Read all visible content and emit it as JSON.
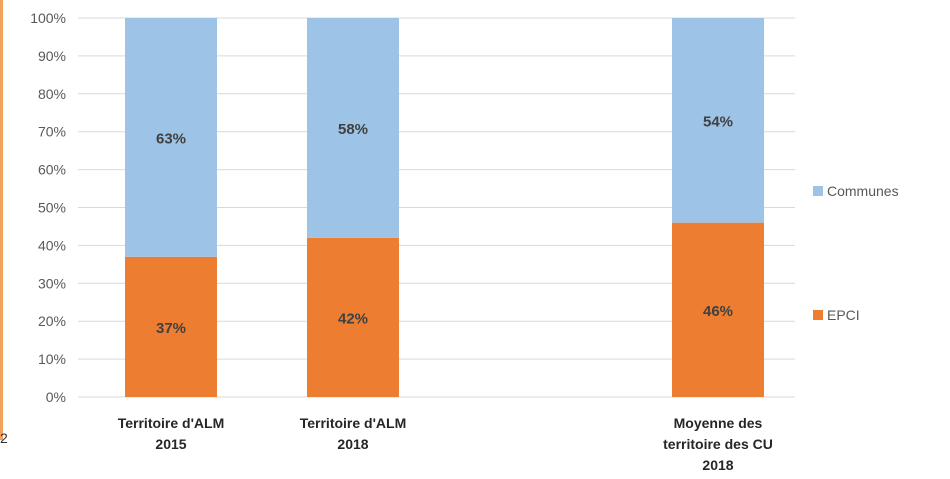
{
  "chart_data": {
    "type": "bar",
    "stacked": true,
    "percent": true,
    "categories": [
      [
        "Territoire d'ALM",
        "2015"
      ],
      [
        "Territoire d'ALM",
        "2018"
      ],
      [
        "Moyenne des",
        "territoire des CU",
        "2018"
      ]
    ],
    "series": [
      {
        "name": "EPCI",
        "color": "#ed7d31",
        "values": [
          37,
          42,
          46
        ],
        "labels": [
          "37%",
          "42%",
          "46%"
        ]
      },
      {
        "name": "Communes",
        "color": "#9dc3e6",
        "values": [
          63,
          58,
          54
        ],
        "labels": [
          "63%",
          "58%",
          "54%"
        ]
      }
    ],
    "y_ticks": [
      "0%",
      "10%",
      "20%",
      "30%",
      "40%",
      "50%",
      "60%",
      "70%",
      "80%",
      "90%",
      "100%"
    ],
    "ylim": [
      0,
      100
    ],
    "grid": true,
    "legend": [
      "Communes",
      "EPCI"
    ],
    "legend_position": "right",
    "title": "",
    "xlabel": "",
    "ylabel": ""
  },
  "corner_glyph": "2"
}
